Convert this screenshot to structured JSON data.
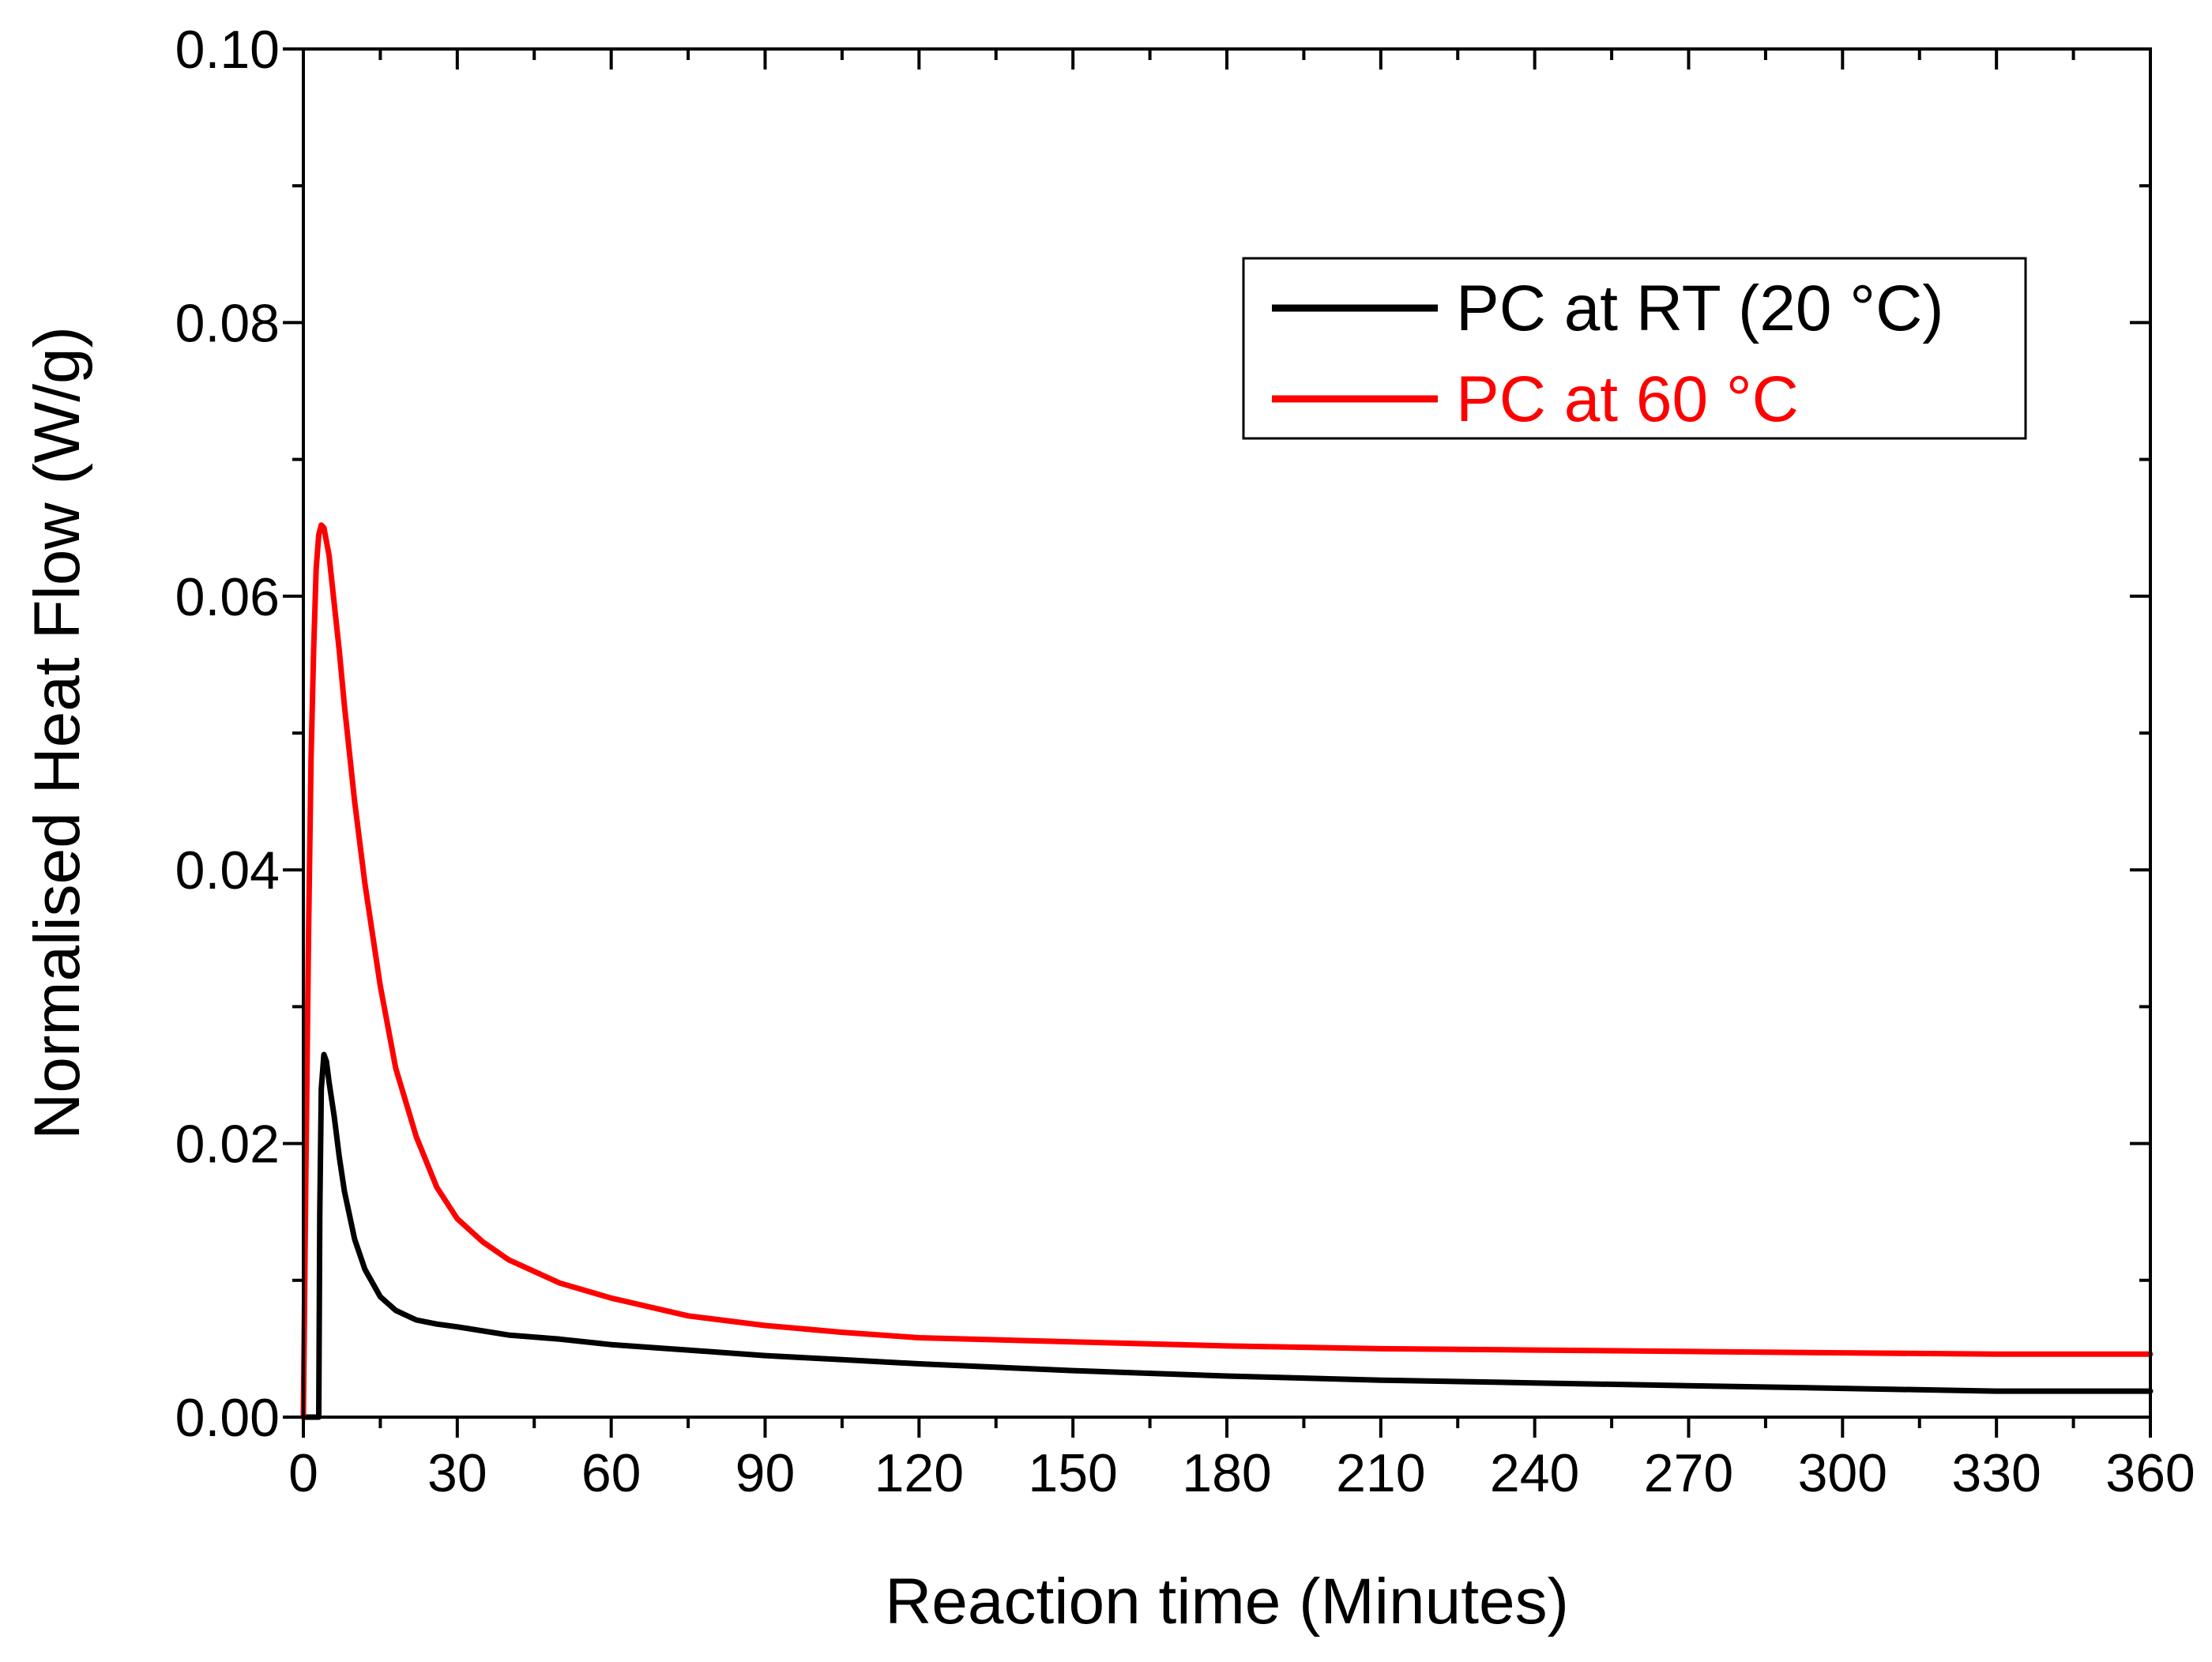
{
  "chart_data": {
    "type": "line",
    "title": "",
    "xlabel": "Reaction time (Minutes)",
    "ylabel": "Normalised Heat Flow (W/g)",
    "xlim": [
      0,
      360
    ],
    "ylim": [
      0,
      0.1
    ],
    "xticks": [
      0,
      30,
      60,
      90,
      120,
      150,
      180,
      210,
      240,
      270,
      300,
      330,
      360
    ],
    "xtick_labels": [
      "0",
      "30",
      "60",
      "90",
      "120",
      "150",
      "180",
      "210",
      "240",
      "270",
      "300",
      "330",
      "360"
    ],
    "yticks": [
      0,
      0.02,
      0.04,
      0.06,
      0.08,
      0.1
    ],
    "ytick_labels": [
      "0.00",
      "0.02",
      "0.04",
      "0.06",
      "0.08",
      "0.10"
    ],
    "grid": false,
    "legend_position": "top-right",
    "series": [
      {
        "name": "PC at RT (20 °C)",
        "color": "#000000",
        "x": [
          0,
          3,
          3.2,
          3.5,
          4,
          4.5,
          5,
          6,
          7,
          8,
          10,
          12,
          15,
          18,
          22,
          26,
          30,
          40,
          50,
          60,
          75,
          90,
          105,
          120,
          150,
          180,
          210,
          240,
          270,
          300,
          330,
          360
        ],
        "y": [
          0,
          0,
          0.015,
          0.024,
          0.0265,
          0.026,
          0.0245,
          0.022,
          0.019,
          0.0165,
          0.013,
          0.0108,
          0.0088,
          0.0078,
          0.0071,
          0.0068,
          0.0066,
          0.006,
          0.0057,
          0.0053,
          0.0049,
          0.0045,
          0.0042,
          0.0039,
          0.0034,
          0.003,
          0.0027,
          0.0025,
          0.0023,
          0.0021,
          0.0019,
          0.0019
        ]
      },
      {
        "name": "PC at 60 °C",
        "color": "#ff0000",
        "x": [
          0,
          0.5,
          1,
          1.5,
          2,
          2.5,
          3,
          3.5,
          4,
          5,
          6,
          7,
          8,
          10,
          12,
          15,
          18,
          22,
          26,
          30,
          35,
          40,
          50,
          60,
          75,
          90,
          105,
          120,
          150,
          180,
          210,
          240,
          270,
          300,
          330,
          360
        ],
        "y": [
          0,
          0.018,
          0.035,
          0.048,
          0.056,
          0.062,
          0.0645,
          0.0652,
          0.065,
          0.063,
          0.0595,
          0.056,
          0.052,
          0.045,
          0.039,
          0.0315,
          0.0255,
          0.0205,
          0.0168,
          0.0145,
          0.0128,
          0.0115,
          0.0098,
          0.0087,
          0.0074,
          0.0067,
          0.0062,
          0.0058,
          0.0055,
          0.0052,
          0.005,
          0.0049,
          0.0048,
          0.0047,
          0.0046,
          0.0046
        ]
      }
    ]
  }
}
